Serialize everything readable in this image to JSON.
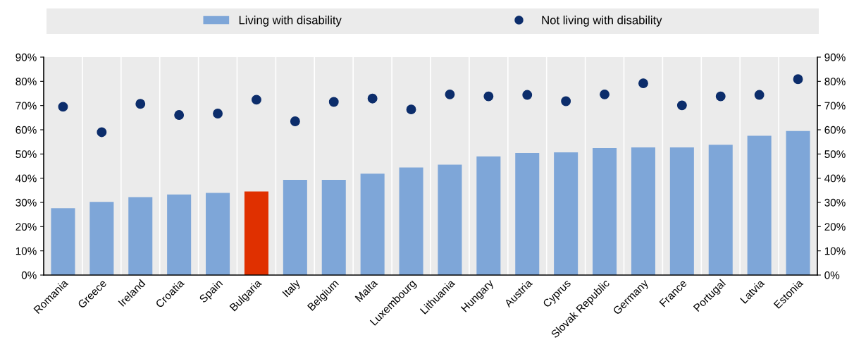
{
  "chart_data": {
    "type": "bar",
    "categories": [
      "Romania",
      "Greece",
      "Ireland",
      "Croatia",
      "Spain",
      "Bulgaria",
      "Italy",
      "Belgium",
      "Malta",
      "Luxembourg",
      "Lithuania",
      "Hungary",
      "Austria",
      "Cyprus",
      "Slovak Republic",
      "Germany",
      "France",
      "Portugal",
      "Latvia",
      "Estonia"
    ],
    "series": [
      {
        "name": "Living with disability",
        "color": "#7ea6d8",
        "colors": [
          "#7ea6d8",
          "#7ea6d8",
          "#7ea6d8",
          "#7ea6d8",
          "#7ea6d8",
          "#e03000",
          "#7ea6d8",
          "#7ea6d8",
          "#7ea6d8",
          "#7ea6d8",
          "#7ea6d8",
          "#7ea6d8",
          "#7ea6d8",
          "#7ea6d8",
          "#7ea6d8",
          "#7ea6d8",
          "#7ea6d8",
          "#7ea6d8",
          "#7ea6d8",
          "#7ea6d8"
        ],
        "values": [
          27.6,
          30.2,
          32.2,
          33.3,
          33.9,
          34.5,
          39.3,
          39.3,
          41.9,
          44.4,
          45.6,
          49.0,
          50.4,
          50.7,
          52.4,
          52.7,
          52.7,
          53.8,
          57.5,
          59.5
        ]
      },
      {
        "name": "Not living with disability",
        "type": "scatter",
        "color": "#0c2d6b",
        "values": [
          69.5,
          59.0,
          70.7,
          66.1,
          66.7,
          72.4,
          63.5,
          71.5,
          72.9,
          68.4,
          74.6,
          73.8,
          74.4,
          71.8,
          74.6,
          79.2,
          70.1,
          73.8,
          74.4,
          80.9
        ]
      }
    ],
    "ylim": [
      0,
      90
    ],
    "yticks": [
      {
        "value": 0,
        "label": "0%"
      },
      {
        "value": 10,
        "label": "10%"
      },
      {
        "value": 20,
        "label": "20%"
      },
      {
        "value": 30,
        "label": "30%"
      },
      {
        "value": 40,
        "label": "40%"
      },
      {
        "value": 50,
        "label": "50%"
      },
      {
        "value": 60,
        "label": "60%"
      },
      {
        "value": 70,
        "label": "70%"
      },
      {
        "value": 80,
        "label": "80%"
      },
      {
        "value": 90,
        "label": "90%"
      }
    ],
    "y2lim": [
      0,
      90
    ],
    "y2ticks": [
      {
        "value": 0,
        "label": "0%"
      },
      {
        "value": 10,
        "label": "10%"
      },
      {
        "value": 20,
        "label": "20%"
      },
      {
        "value": 30,
        "label": "30%"
      },
      {
        "value": 40,
        "label": "40%"
      },
      {
        "value": 50,
        "label": "50%"
      },
      {
        "value": 60,
        "label": "60%"
      },
      {
        "value": 70,
        "label": "70%"
      },
      {
        "value": 80,
        "label": "80%"
      },
      {
        "value": 90,
        "label": "90%"
      }
    ],
    "grid": "x",
    "legend": "top",
    "marker": "circle"
  }
}
